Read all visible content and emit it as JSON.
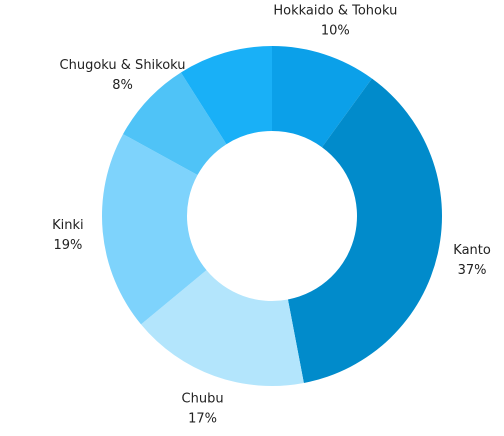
{
  "chart_data": {
    "type": "donut",
    "categories": [
      "Hokkaido & Tohoku",
      "Kanto",
      "Chubu",
      "Kinki",
      "Chugoku & Shikoku",
      null
    ],
    "values": [
      10,
      37,
      17,
      19,
      8,
      9
    ],
    "value_labels": [
      "10%",
      "37%",
      "17%",
      "19%",
      "8%",
      null
    ],
    "colors": [
      "#0ba0e9",
      "#018bcb",
      "#b3e5fc",
      "#7ed3fc",
      "#4fc3f7",
      "#19b0f7"
    ]
  }
}
